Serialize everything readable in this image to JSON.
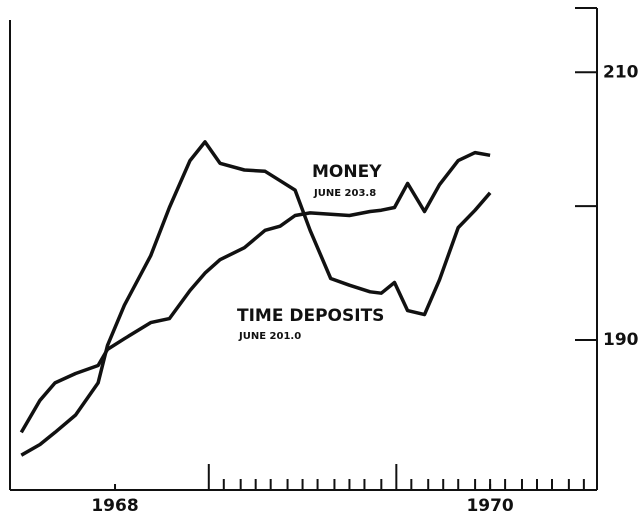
{
  "chart_data": {
    "type": "line",
    "x": [
      1967.5,
      1967.6,
      1967.68,
      1967.79,
      1967.91,
      1967.96,
      1968.05,
      1968.19,
      1968.29,
      1968.4,
      1968.48,
      1968.56,
      1968.69,
      1968.8,
      1968.88,
      1968.96,
      1969.04,
      1969.15,
      1969.25,
      1969.36,
      1969.42,
      1969.49,
      1969.56,
      1969.65,
      1969.73,
      1969.83,
      1969.92,
      1970.0
    ],
    "series": [
      {
        "name": "MONEY",
        "color": "#111111",
        "values": [
          183.1,
          185.5,
          186.8,
          187.5,
          188.1,
          189.3,
          190.1,
          191.3,
          191.6,
          193.7,
          195.0,
          196.0,
          196.9,
          198.2,
          198.5,
          199.3,
          199.5,
          199.4,
          199.3,
          199.6,
          199.7,
          199.9,
          201.7,
          199.6,
          201.6,
          203.4,
          204.0,
          203.8
        ]
      },
      {
        "name": "TIME DEPOSITS",
        "color": "#111111",
        "values": [
          181.4,
          182.2,
          183.1,
          184.4,
          186.8,
          189.6,
          192.6,
          196.3,
          199.9,
          203.4,
          204.8,
          203.2,
          202.7,
          202.6,
          201.9,
          201.2,
          198.2,
          194.6,
          194.1,
          193.6,
          193.5,
          194.3,
          192.2,
          191.9,
          194.5,
          198.4,
          199.7,
          201.0
        ]
      }
    ],
    "annotations": [
      "JUNE 203.8",
      "JUNE 201.0"
    ],
    "xlim": [
      1967.44,
      1970.57
    ],
    "xticks": [
      1968,
      1970
    ],
    "xmajorticks": [
      1968.5,
      1969.5
    ],
    "xminorticks": [
      1968.58,
      1968.67,
      1968.75,
      1968.83,
      1968.92,
      1969.0,
      1969.08,
      1969.17,
      1969.25,
      1969.33,
      1969.42,
      1969.58,
      1969.67,
      1969.75,
      1969.83,
      1969.92,
      1970.0,
      1970.08,
      1970.17,
      1970.25,
      1970.33,
      1970.42,
      1970.5
    ],
    "ylim": [
      178.8,
      214.8
    ],
    "yticks": [
      190,
      210
    ],
    "yminorticks": [
      200
    ],
    "yaxis_side": "right"
  }
}
